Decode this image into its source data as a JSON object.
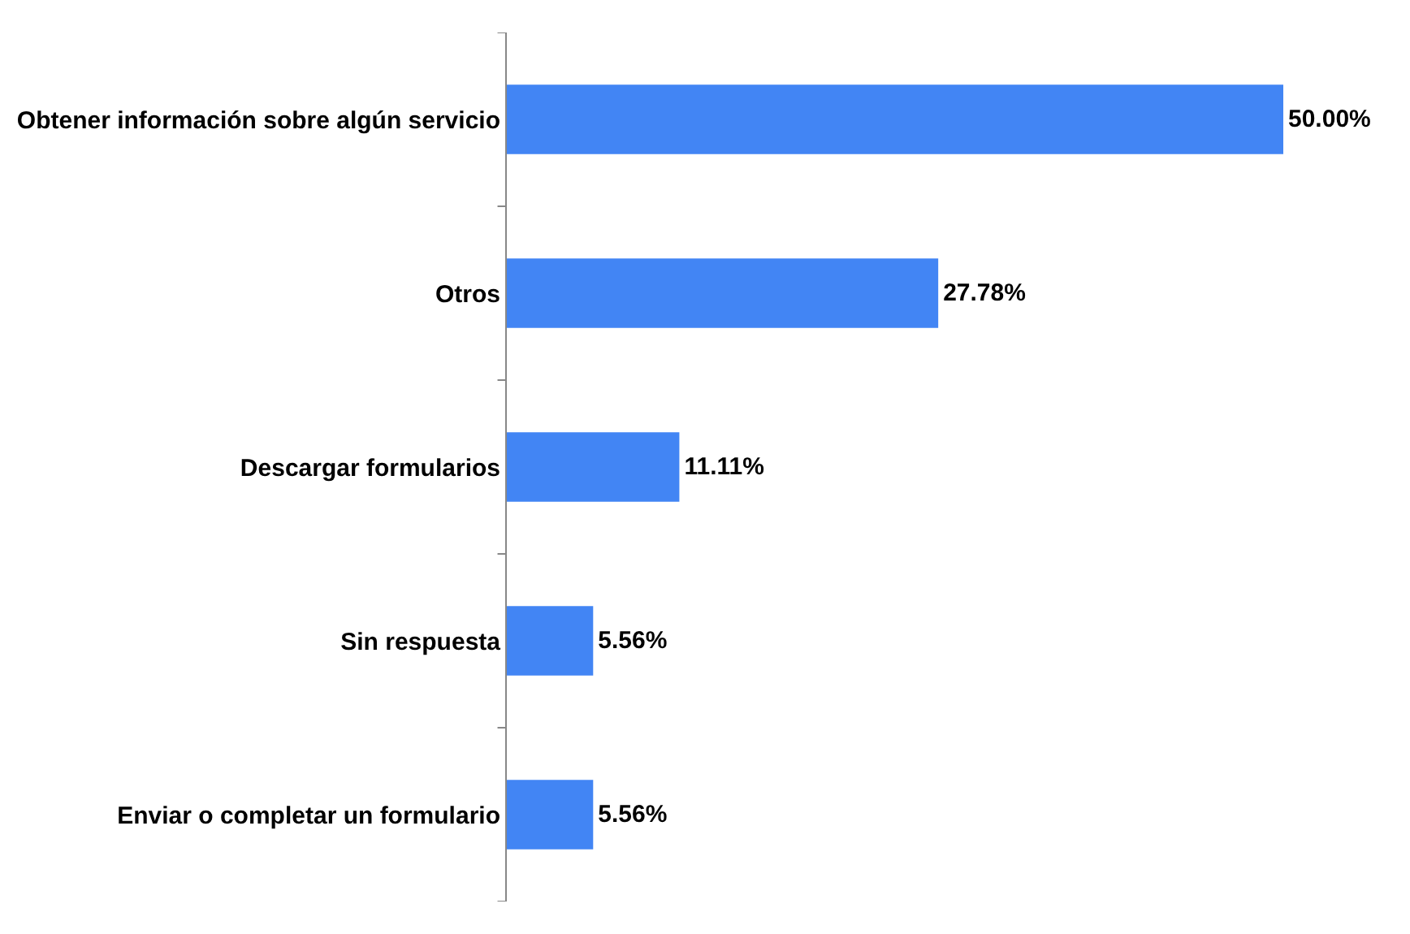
{
  "chart_data": {
    "type": "bar",
    "orientation": "horizontal",
    "categories": [
      "Obtener información sobre algún servicio",
      "Otros",
      "Descargar formularios",
      "Sin respuesta",
      "Enviar o completar un formulario"
    ],
    "values": [
      50.0,
      27.78,
      11.11,
      5.56,
      5.56
    ],
    "value_labels": [
      "50.00%",
      "27.78%",
      "11.11%",
      "5.56%",
      "5.56%"
    ],
    "color": "#4285f4"
  }
}
